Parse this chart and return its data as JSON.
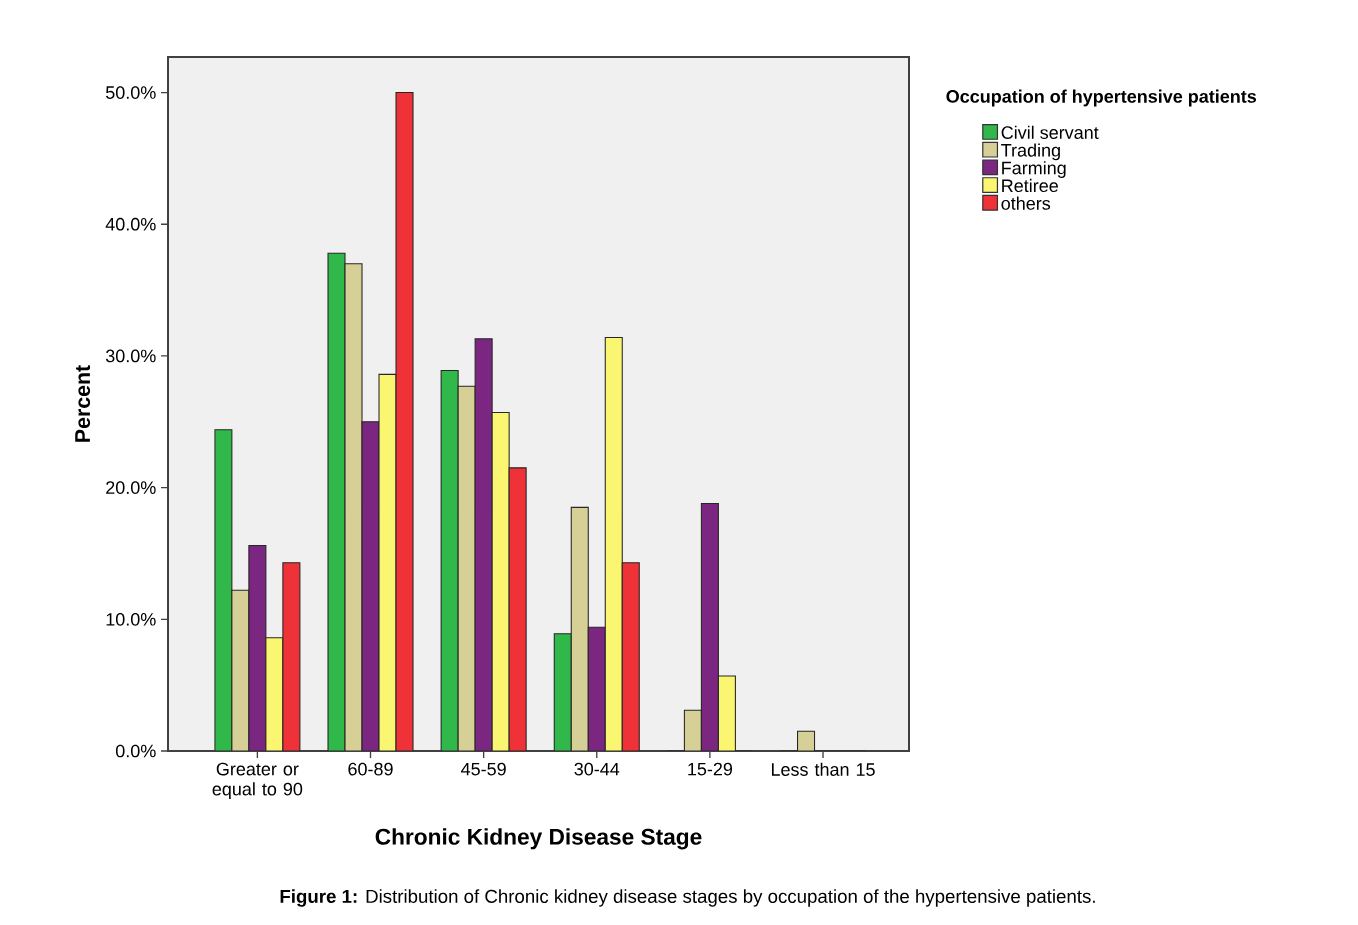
{
  "chart_data": {
    "type": "bar",
    "xlabel": "Chronic Kidney Disease Stage",
    "ylabel": "Percent",
    "legend_title": "Occupation of hypertensive patients",
    "legend": "right",
    "grid": false,
    "categories": [
      "Greater or equal to 90",
      "60-89",
      "45-59",
      "30-44",
      "15-29",
      "Less than 15"
    ],
    "ylim": [
      0,
      52.7
    ],
    "yticks": [
      {
        "value": 0,
        "label": "0.0%"
      },
      {
        "value": 10,
        "label": "10.0%"
      },
      {
        "value": 20,
        "label": "20.0%"
      },
      {
        "value": 30,
        "label": "30.0%"
      },
      {
        "value": 40,
        "label": "40.0%"
      },
      {
        "value": 50,
        "label": "50.0%"
      }
    ],
    "series": [
      {
        "name": "Civil servant",
        "color": "#30b84a",
        "values": [
          24.4,
          37.8,
          28.9,
          8.9,
          0,
          0
        ]
      },
      {
        "name": "Trading",
        "color": "#d6cf96",
        "values": [
          12.2,
          37.0,
          27.7,
          18.5,
          3.1,
          1.5
        ]
      },
      {
        "name": "Farming",
        "color": "#7b2680",
        "values": [
          15.6,
          25.0,
          31.3,
          9.4,
          18.8,
          0
        ]
      },
      {
        "name": "Retiree",
        "color": "#fbf672",
        "values": [
          8.6,
          28.6,
          25.7,
          31.4,
          5.7,
          0
        ]
      },
      {
        "name": "others",
        "color": "#ee3237",
        "values": [
          14.3,
          50.0,
          21.5,
          14.3,
          0,
          0
        ]
      }
    ],
    "annotations": [
      "**Figure 1:** Distribution of Chronic kidney disease stages by occupation of the hypertensive patients."
    ]
  }
}
